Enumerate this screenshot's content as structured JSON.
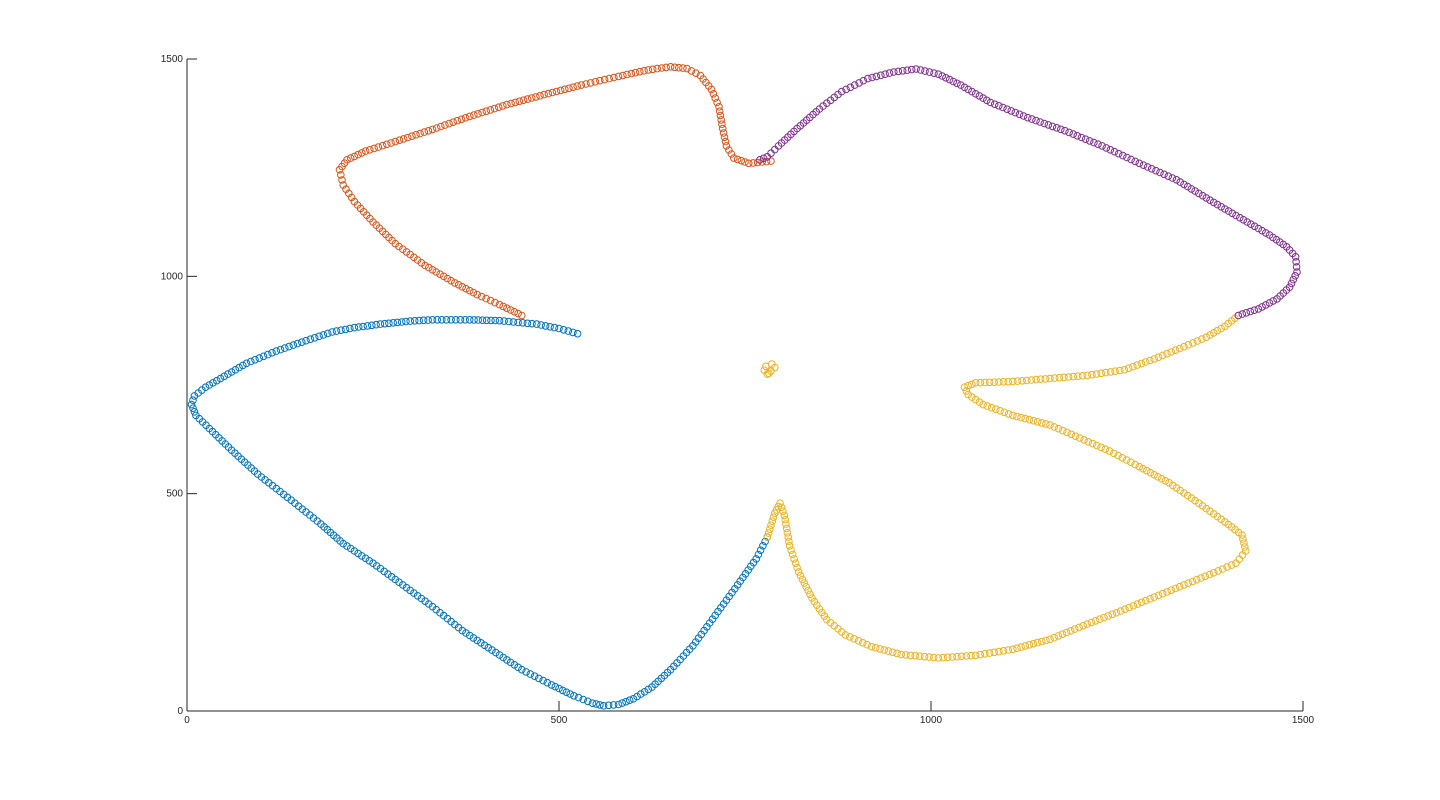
{
  "chart_data": {
    "type": "scatter",
    "title": "",
    "xlabel": "",
    "ylabel": "",
    "xlim": [
      0,
      1500
    ],
    "ylim": [
      0,
      1500
    ],
    "grid": false,
    "legend": "none",
    "x_ticks": [
      {
        "value": 0,
        "label": "0"
      },
      {
        "value": 500,
        "label": "500"
      },
      {
        "value": 1000,
        "label": "1000"
      },
      {
        "value": 1500,
        "label": "1500"
      }
    ],
    "y_ticks": [
      {
        "value": 0,
        "label": "0"
      },
      {
        "value": 500,
        "label": "500"
      },
      {
        "value": 1000,
        "label": "1000"
      },
      {
        "value": 1500,
        "label": "1500"
      }
    ],
    "marker": "circle-open",
    "series": [
      {
        "color": "#0072BD",
        "points": [
          [
            525,
            868
          ],
          [
            500,
            880
          ],
          [
            470,
            890
          ],
          [
            420,
            898
          ],
          [
            380,
            900
          ],
          [
            330,
            900
          ],
          [
            300,
            897
          ],
          [
            260,
            890
          ],
          [
            225,
            882
          ],
          [
            195,
            872
          ],
          [
            160,
            852
          ],
          [
            120,
            828
          ],
          [
            80,
            800
          ],
          [
            50,
            770
          ],
          [
            25,
            745
          ],
          [
            10,
            725
          ],
          [
            6,
            705
          ],
          [
            12,
            680
          ],
          [
            30,
            650
          ],
          [
            60,
            600
          ],
          [
            95,
            545
          ],
          [
            140,
            485
          ],
          [
            180,
            430
          ],
          [
            210,
            385
          ],
          [
            250,
            340
          ],
          [
            290,
            290
          ],
          [
            330,
            240
          ],
          [
            370,
            185
          ],
          [
            410,
            140
          ],
          [
            450,
            95
          ],
          [
            490,
            60
          ],
          [
            520,
            35
          ],
          [
            545,
            18
          ],
          [
            560,
            12
          ],
          [
            580,
            15
          ],
          [
            600,
            28
          ],
          [
            625,
            55
          ],
          [
            650,
            95
          ],
          [
            680,
            150
          ],
          [
            710,
            220
          ],
          [
            740,
            290
          ],
          [
            765,
            350
          ],
          [
            780,
            400
          ]
        ]
      },
      {
        "color": "#D95319",
        "points": [
          [
            450,
            910
          ],
          [
            420,
            935
          ],
          [
            390,
            958
          ],
          [
            360,
            985
          ],
          [
            320,
            1025
          ],
          [
            280,
            1075
          ],
          [
            250,
            1125
          ],
          [
            225,
            1172
          ],
          [
            210,
            1210
          ],
          [
            205,
            1245
          ],
          [
            215,
            1268
          ],
          [
            240,
            1288
          ],
          [
            280,
            1310
          ],
          [
            330,
            1338
          ],
          [
            380,
            1368
          ],
          [
            430,
            1395
          ],
          [
            480,
            1418
          ],
          [
            530,
            1440
          ],
          [
            580,
            1460
          ],
          [
            620,
            1475
          ],
          [
            650,
            1482
          ],
          [
            672,
            1478
          ],
          [
            690,
            1462
          ],
          [
            705,
            1430
          ],
          [
            715,
            1390
          ],
          [
            720,
            1340
          ],
          [
            725,
            1300
          ],
          [
            735,
            1272
          ],
          [
            755,
            1260
          ],
          [
            785,
            1265
          ]
        ]
      },
      {
        "color": "#EDB120",
        "points": [
          [
            780,
            400
          ],
          [
            790,
            455
          ],
          [
            797,
            478
          ],
          [
            803,
            450
          ],
          [
            810,
            380
          ],
          [
            822,
            320
          ],
          [
            840,
            260
          ],
          [
            860,
            210
          ],
          [
            885,
            175
          ],
          [
            920,
            148
          ],
          [
            960,
            130
          ],
          [
            1010,
            122
          ],
          [
            1060,
            128
          ],
          [
            1110,
            142
          ],
          [
            1160,
            165
          ],
          [
            1210,
            200
          ],
          [
            1255,
            230
          ],
          [
            1300,
            262
          ],
          [
            1340,
            290
          ],
          [
            1380,
            318
          ],
          [
            1410,
            340
          ],
          [
            1423,
            368
          ],
          [
            1418,
            405
          ],
          [
            1395,
            435
          ],
          [
            1360,
            478
          ],
          [
            1320,
            525
          ],
          [
            1280,
            562
          ],
          [
            1240,
            598
          ],
          [
            1200,
            628
          ],
          [
            1160,
            658
          ],
          [
            1110,
            680
          ],
          [
            1070,
            705
          ],
          [
            1050,
            728
          ],
          [
            1045,
            745
          ],
          [
            1060,
            755
          ],
          [
            1110,
            758
          ],
          [
            1160,
            765
          ],
          [
            1210,
            772
          ],
          [
            1260,
            785
          ],
          [
            1300,
            810
          ],
          [
            1340,
            838
          ],
          [
            1370,
            860
          ],
          [
            1395,
            885
          ],
          [
            1413,
            910
          ]
        ]
      },
      {
        "color": "#EDB120",
        "points": [
          [
            780,
            775
          ],
          [
            785,
            782
          ],
          [
            790,
            790
          ],
          [
            786,
            798
          ],
          [
            778,
            793
          ],
          [
            776,
            784
          ],
          [
            782,
            777
          ]
        ]
      },
      {
        "color": "#7E2F8E",
        "points": [
          [
            1413,
            910
          ],
          [
            1440,
            925
          ],
          [
            1465,
            948
          ],
          [
            1482,
            975
          ],
          [
            1492,
            1010
          ],
          [
            1490,
            1045
          ],
          [
            1478,
            1068
          ],
          [
            1455,
            1095
          ],
          [
            1420,
            1130
          ],
          [
            1380,
            1170
          ],
          [
            1330,
            1222
          ],
          [
            1280,
            1260
          ],
          [
            1230,
            1300
          ],
          [
            1180,
            1335
          ],
          [
            1130,
            1365
          ],
          [
            1080,
            1400
          ],
          [
            1040,
            1440
          ],
          [
            1010,
            1465
          ],
          [
            980,
            1477
          ],
          [
            950,
            1470
          ],
          [
            915,
            1455
          ],
          [
            880,
            1425
          ],
          [
            850,
            1385
          ],
          [
            820,
            1340
          ],
          [
            795,
            1300
          ],
          [
            780,
            1275
          ],
          [
            770,
            1268
          ]
        ]
      }
    ]
  }
}
